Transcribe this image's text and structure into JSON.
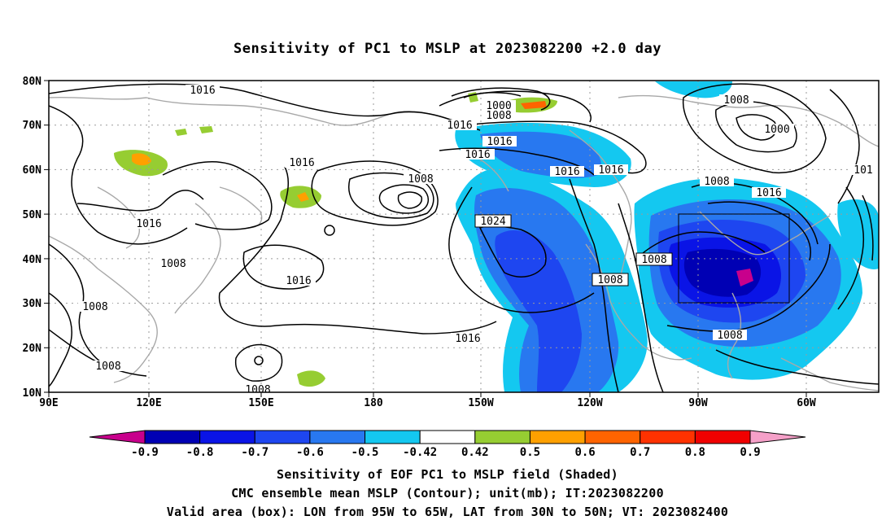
{
  "title": "Sensitivity of PC1 to MSLP at 2023082200 +2.0 day",
  "lat_labels": [
    "80N",
    "70N",
    "60N",
    "50N",
    "40N",
    "30N",
    "20N",
    "10N"
  ],
  "lon_labels": [
    "90E",
    "120E",
    "150E",
    "180",
    "150W",
    "120W",
    "90W",
    "60W"
  ],
  "contour_labels": [
    "1016",
    "1000",
    "1008",
    "1016",
    "1016",
    "1016",
    "1016",
    "1016",
    "1008",
    "1008",
    "1000",
    "1016",
    "101",
    "1008",
    "1016",
    "1024",
    "1016",
    "1008",
    "1016",
    "1008",
    "1008",
    "1016",
    "1008",
    "1008",
    "1008",
    "1008"
  ],
  "colorbar": {
    "labels": [
      "-0.9",
      "-0.8",
      "-0.7",
      "-0.6",
      "-0.5",
      "-0.42",
      "0.42",
      "0.5",
      "0.6",
      "0.7",
      "0.8",
      "0.9"
    ],
    "colors": [
      "#c8008c",
      "#0000b4",
      "#0a14e6",
      "#1e46f0",
      "#2878f0",
      "#14c8f0",
      "#ffffff",
      "#96cd32",
      "#ffa000",
      "#ff6400",
      "#ff3200",
      "#f00000",
      "#f5a0c8"
    ]
  },
  "captions": [
    "Sensitivity of EOF PC1 to MSLP field (Shaded)",
    "CMC ensemble mean MSLP (Contour); unit(mb); IT:2023082200",
    "Valid area (box): LON from 95W to 65W, LAT from 30N to 50N; VT: 2023082400"
  ]
}
